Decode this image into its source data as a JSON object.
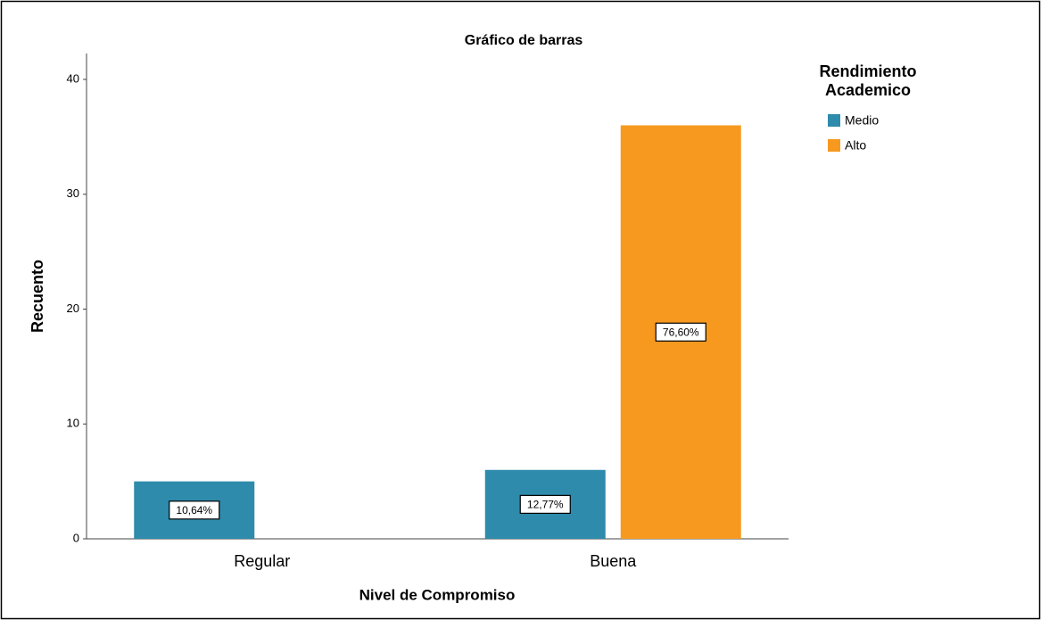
{
  "chart_data": {
    "type": "bar",
    "title": "Gráfico de barras",
    "x_label": "Nivel de Compromiso",
    "y_label": "Recuento",
    "legend_title": "Rendimiento Academico",
    "categories": [
      "Regular",
      "Buena"
    ],
    "series": [
      {
        "name": "Medio",
        "color": "#2e8bab",
        "values": [
          5,
          6
        ],
        "labels": [
          "10,64%",
          "12,77%"
        ]
      },
      {
        "name": "Alto",
        "color": "#f7991f",
        "values": [
          null,
          36
        ],
        "labels": [
          null,
          "76,60%"
        ]
      }
    ],
    "ylim": [
      0,
      40
    ],
    "yticks": [
      0,
      10,
      20,
      30,
      40
    ],
    "grid": false,
    "legend": "right"
  }
}
